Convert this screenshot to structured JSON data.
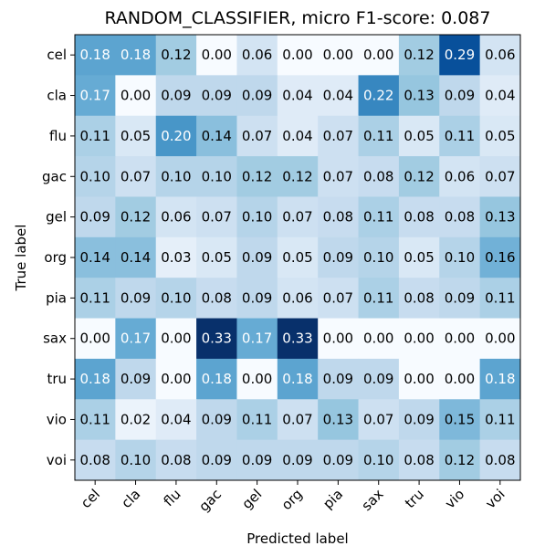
{
  "chart_data": {
    "type": "heatmap",
    "title": "RANDOM_CLASSIFIER, micro F1-score: 0.087",
    "xlabel": "Predicted label",
    "ylabel": "True label",
    "x_categories": [
      "cel",
      "cla",
      "flu",
      "gac",
      "gel",
      "org",
      "pia",
      "sax",
      "tru",
      "vio",
      "voi"
    ],
    "y_categories": [
      "cel",
      "cla",
      "flu",
      "gac",
      "gel",
      "org",
      "pia",
      "sax",
      "tru",
      "vio",
      "voi"
    ],
    "value_range": [
      0.0,
      0.33
    ],
    "colormap": "Blues",
    "colors": {
      "low": "#f7fbff",
      "high": "#08306b"
    },
    "values": [
      [
        "0.18",
        "0.18",
        "0.12",
        "0.00",
        "0.06",
        "0.00",
        "0.00",
        "0.00",
        "0.12",
        "0.29",
        "0.06"
      ],
      [
        "0.17",
        "0.00",
        "0.09",
        "0.09",
        "0.09",
        "0.04",
        "0.04",
        "0.22",
        "0.13",
        "0.09",
        "0.04"
      ],
      [
        "0.11",
        "0.05",
        "0.20",
        "0.14",
        "0.07",
        "0.04",
        "0.07",
        "0.11",
        "0.05",
        "0.11",
        "0.05"
      ],
      [
        "0.10",
        "0.07",
        "0.10",
        "0.10",
        "0.12",
        "0.12",
        "0.07",
        "0.08",
        "0.12",
        "0.06",
        "0.07"
      ],
      [
        "0.09",
        "0.12",
        "0.06",
        "0.07",
        "0.10",
        "0.07",
        "0.08",
        "0.11",
        "0.08",
        "0.08",
        "0.13"
      ],
      [
        "0.14",
        "0.14",
        "0.03",
        "0.05",
        "0.09",
        "0.05",
        "0.09",
        "0.10",
        "0.05",
        "0.10",
        "0.16"
      ],
      [
        "0.11",
        "0.09",
        "0.10",
        "0.08",
        "0.09",
        "0.06",
        "0.07",
        "0.11",
        "0.08",
        "0.09",
        "0.11"
      ],
      [
        "0.00",
        "0.17",
        "0.00",
        "0.33",
        "0.17",
        "0.33",
        "0.00",
        "0.00",
        "0.00",
        "0.00",
        "0.00"
      ],
      [
        "0.18",
        "0.09",
        "0.00",
        "0.18",
        "0.00",
        "0.18",
        "0.09",
        "0.09",
        "0.00",
        "0.00",
        "0.18"
      ],
      [
        "0.11",
        "0.02",
        "0.04",
        "0.09",
        "0.11",
        "0.07",
        "0.13",
        "0.07",
        "0.09",
        "0.15",
        "0.11"
      ],
      [
        "0.08",
        "0.10",
        "0.08",
        "0.09",
        "0.09",
        "0.09",
        "0.09",
        "0.10",
        "0.08",
        "0.12",
        "0.08"
      ]
    ]
  }
}
